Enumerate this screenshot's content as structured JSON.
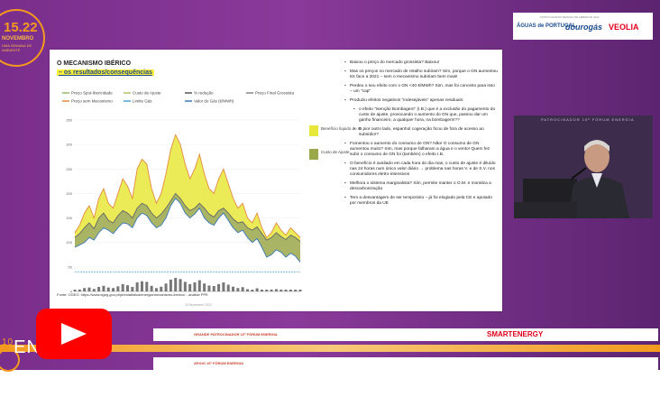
{
  "badge": {
    "dates": "15.22",
    "month": "NOVEMBRO",
    "tagline": "UMA SEMANA DE AMBIENTE"
  },
  "slide": {
    "title": "O MECANISMO IBÉRICO",
    "subtitle": "– os resultados/consequências",
    "legend": [
      {
        "label": "Preço Spot-Ibericidade",
        "color": "#9bb86a"
      },
      {
        "label": "Custo de Ajuste",
        "color": "#b6c36b"
      },
      {
        "label": "% redução",
        "color": "#555555"
      },
      {
        "label": "Preço Final Grossista",
        "color": "#888888"
      },
      {
        "label": "Preço sem Mecanismo",
        "color": "#e28a3e"
      },
      {
        "label": "Limite Gás",
        "color": "#4aa0d0"
      },
      {
        "label": "Valor do Gás (€/MWh)",
        "color": "#3a78b8"
      }
    ],
    "box_legend": [
      {
        "label": "Benefício líquido do mecanismo",
        "color": "#e8e83a"
      },
      {
        "label": "Custo de Ajuste",
        "color": "#9aa84a"
      }
    ],
    "source": "Fonte: OGEG: https://www.dgeg.gov.pt/pt/estatistica/energia/mecanismo-iberico/  -  análise PPE",
    "date": "15 Novembro 2022",
    "bullets": [
      {
        "text": "Baixou o preço do mercado grossista? Baixou!"
      },
      {
        "text": "Mas os preços no mercado de retalho subiram? Sim, porque o GN aumentou 6X face a 2021 – sem o mecanismo subiriam bem mais!"
      },
      {
        "text": "Perdeu o seu efeito com o GN <40 €/MWh? Sim, mas foi conceito para isso – um \"cap\""
      },
      {
        "text": "Produziu efeitos negativos \"indesejáveis\" apenas residuais:"
      },
      {
        "text": "o efeito \"Isenção Bombagem\" (I.B.) que é a exclusão do pagamento do custo de ajuste, provocando o aumento do GN que, passou dar um ganho financeiro, a qualquer hora, na bombagem!??",
        "sub": true
      },
      {
        "text": "E pior outro lado, espanhol cogeração ficou de fora de acesso ao subsídio!?",
        "sub": true
      },
      {
        "text": "Fomentou o aumento do consumo de GN? Não! O consumo de GN aumentou muito? Sim, mas porque falharam a água e o vento! Quem fez subir o consumo de GN foi (também) o efeito I.B."
      },
      {
        "text": "O benefício é avaliado em cada hora do dia mas, o custo de ajuste é diluído nas 24 horas num único valor diário → problema nas horas V. e de S.V. nos consumidores eletro-intensivos"
      },
      {
        "text": "Melhora o sistema marginalista? Sim, permite manter o O.M. e moraliza a descarbonização"
      },
      {
        "text": "Tem a desvantagem de ser temporário – já foi elogiado pela CE e apoiado por membros da UE"
      }
    ]
  },
  "chart_data": {
    "type": "area",
    "x_count": 48,
    "ylim": [
      0,
      350
    ],
    "yticks": [
      0,
      50,
      100,
      150,
      200,
      250,
      300,
      350
    ],
    "series": [
      {
        "name": "Preço sem Mecanismo",
        "values": [
          120,
          135,
          160,
          175,
          150,
          190,
          210,
          180,
          170,
          200,
          230,
          215,
          190,
          250,
          270,
          260,
          210,
          180,
          200,
          240,
          290,
          320,
          300,
          260,
          230,
          250,
          280,
          240,
          210,
          200,
          230,
          250,
          220,
          190,
          170,
          180,
          150,
          140,
          160,
          130,
          110,
          120,
          140,
          125,
          115,
          130,
          120,
          110
        ]
      },
      {
        "name": "Preço Final Grossista",
        "values": [
          110,
          118,
          130,
          140,
          128,
          150,
          160,
          145,
          140,
          155,
          165,
          160,
          150,
          170,
          180,
          175,
          160,
          150,
          158,
          170,
          185,
          200,
          190,
          175,
          165,
          170,
          180,
          170,
          158,
          152,
          165,
          170,
          160,
          148,
          140,
          142,
          130,
          125,
          132,
          118,
          105,
          110,
          120,
          112,
          106,
          115,
          110,
          102
        ]
      },
      {
        "name": "Limite Gás",
        "values": [
          40,
          40,
          40,
          40,
          40,
          40,
          40,
          40,
          40,
          40,
          40,
          40,
          40,
          40,
          40,
          40,
          40,
          40,
          40,
          40,
          40,
          40,
          40,
          40,
          40,
          40,
          40,
          40,
          40,
          40,
          40,
          40,
          40,
          40,
          40,
          40,
          40,
          40,
          40,
          40,
          40,
          40,
          40,
          40,
          40,
          40,
          40,
          40
        ]
      },
      {
        "name": "Valor do Gás (€/MWh)",
        "values": [
          90,
          95,
          100,
          110,
          105,
          120,
          130,
          125,
          118,
          130,
          140,
          138,
          130,
          150,
          160,
          155,
          140,
          130,
          135,
          150,
          175,
          190,
          180,
          160,
          150,
          158,
          170,
          150,
          140,
          135,
          150,
          160,
          145,
          130,
          120,
          125,
          110,
          100,
          108,
          90,
          70,
          75,
          85,
          80,
          70,
          78,
          72,
          60
        ]
      }
    ]
  },
  "sponsors": {
    "header": "PATROCINADOR SEMANA DE AMBIENTE 2022",
    "a": "ÁGUAS de PORTUGAL",
    "b": "dourogás",
    "c": "VEOLIA"
  },
  "speaker": {
    "bg_text": "PATROCINADOR 10º FÓRUM ENERGIA"
  },
  "banner1": {
    "label": "GRANDE PATROCINADOR 10º FÓRUM ENERGIA",
    "brand": "SMARTENERGY"
  },
  "banner2": {
    "label": "APOIO 10º FÓRUM ENERGIA"
  },
  "footer": {
    "event": "ENERGIA",
    "edition": "10"
  },
  "colors": {
    "accent": "#f39a1e",
    "purple": "#7a2e8c",
    "yt_red": "#ff0000"
  }
}
